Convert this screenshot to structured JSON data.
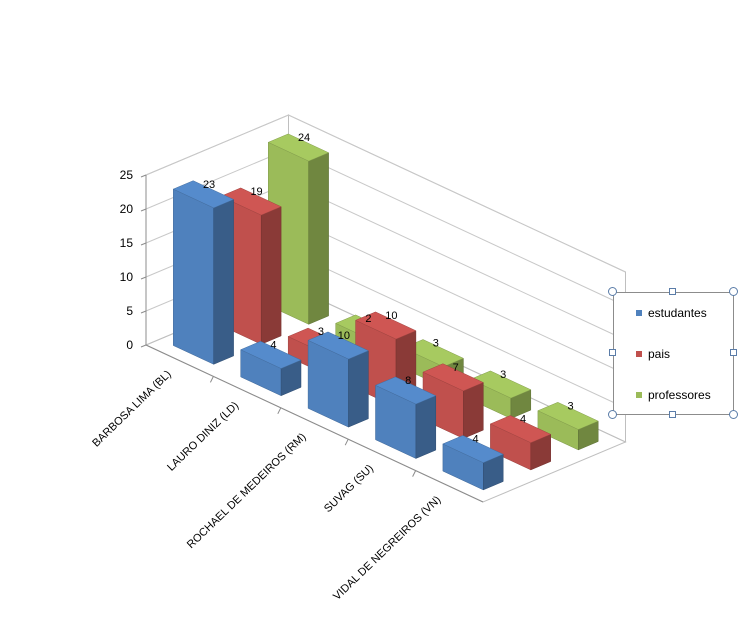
{
  "chart_data": {
    "type": "bar",
    "three_d": true,
    "categories": [
      "BARBOSA LIMA (BL)",
      "LAURO DINIZ  (LD)",
      "ROCHAEL DE MEDEIROS (RM)",
      "SUVAG (SU)",
      "VIDAL DE NEGREIROS  (VN)"
    ],
    "series": [
      {
        "name": "estudantes",
        "values": [
          23,
          4,
          10,
          8,
          4
        ],
        "color": "#4f81bd"
      },
      {
        "name": "pais",
        "values": [
          19,
          3,
          10,
          7,
          4
        ],
        "color": "#c0504d"
      },
      {
        "name": "professores",
        "values": [
          24,
          2,
          3,
          3,
          3
        ],
        "color": "#9bbb59"
      }
    ],
    "zlim": [
      0,
      25
    ],
    "z_ticks": [
      "0",
      "5",
      "10",
      "15",
      "20",
      "25"
    ],
    "legend_position": "right",
    "legend_selected": true,
    "grid": true,
    "title": "",
    "xlabel": "",
    "ylabel": ""
  }
}
